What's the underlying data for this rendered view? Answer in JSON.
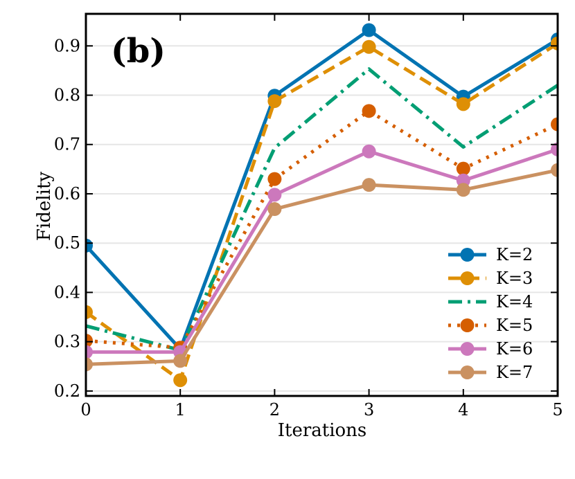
{
  "chart_data": {
    "type": "line",
    "panel_label": "(b)",
    "title": "",
    "xlabel": "Iterations",
    "ylabel": "Fidelity",
    "x": [
      0,
      1,
      2,
      3,
      4,
      5
    ],
    "xlim": [
      0,
      5
    ],
    "ylim": [
      0.19,
      0.965
    ],
    "xticks": [
      0,
      1,
      2,
      3,
      4,
      5
    ],
    "xtick_labels": [
      "0",
      "1",
      "2",
      "3",
      "4",
      "5"
    ],
    "yticks": [
      0.2,
      0.3,
      0.4,
      0.5,
      0.6,
      0.7,
      0.8,
      0.9
    ],
    "ytick_labels": [
      "0.2",
      "0.3",
      "0.4",
      "0.5",
      "0.6",
      "0.7",
      "0.8",
      "0.9"
    ],
    "grid": "horizontal",
    "legend_position": "lower-right",
    "series": [
      {
        "name": "K=2",
        "color": "#0173b2",
        "style": "solid",
        "markers": true,
        "values": [
          0.495,
          0.285,
          0.799,
          0.932,
          0.797,
          0.913
        ]
      },
      {
        "name": "K=3",
        "color": "#de8f05",
        "style": "dashed",
        "markers": true,
        "values": [
          0.36,
          0.222,
          0.788,
          0.898,
          0.782,
          0.905
        ]
      },
      {
        "name": "K=4",
        "color": "#029e73",
        "style": "dashdot",
        "markers": false,
        "values": [
          0.332,
          0.283,
          0.693,
          0.853,
          0.695,
          0.82
        ]
      },
      {
        "name": "K=5",
        "color": "#d55e00",
        "style": "dotted",
        "markers": true,
        "values": [
          0.302,
          0.288,
          0.63,
          0.768,
          0.651,
          0.741
        ]
      },
      {
        "name": "K=6",
        "color": "#cc78bc",
        "style": "solid",
        "markers": true,
        "values": [
          0.279,
          0.279,
          0.598,
          0.686,
          0.627,
          0.69
        ]
      },
      {
        "name": "K=7",
        "color": "#ca9161",
        "style": "solid",
        "markers": true,
        "values": [
          0.254,
          0.261,
          0.569,
          0.618,
          0.608,
          0.648
        ]
      }
    ]
  }
}
